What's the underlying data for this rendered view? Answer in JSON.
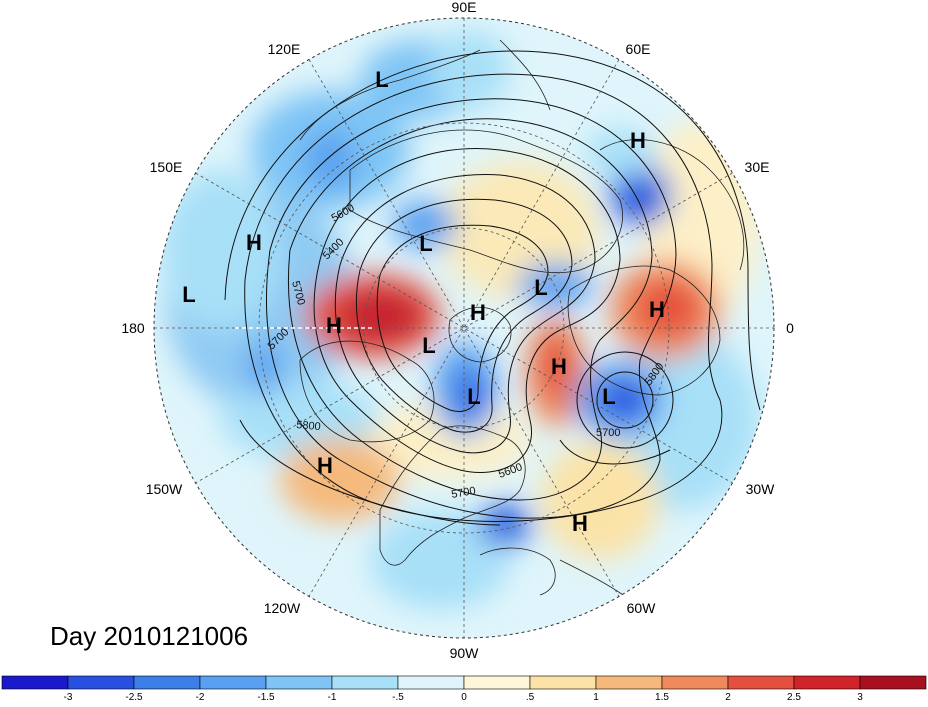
{
  "title": "Day 2010121006",
  "projection": "north-polar-stereographic",
  "longitude_labels": [
    {
      "text": "90E",
      "lon": 90
    },
    {
      "text": "60E",
      "lon": 60
    },
    {
      "text": "30E",
      "lon": 30
    },
    {
      "text": "0",
      "lon": 0
    },
    {
      "text": "30W",
      "lon": -30
    },
    {
      "text": "60W",
      "lon": -60
    },
    {
      "text": "90W",
      "lon": -90
    },
    {
      "text": "120W",
      "lon": -120
    },
    {
      "text": "150W",
      "lon": -150
    },
    {
      "text": "180",
      "lon": 180
    },
    {
      "text": "150E",
      "lon": 150
    },
    {
      "text": "120E",
      "lon": 120
    }
  ],
  "contour_labels": [
    "5600",
    "5400",
    "5700",
    "5800",
    "5700",
    "5800",
    "5700",
    "5600",
    "5700",
    "5800",
    "5700"
  ],
  "pressure_centers": [
    {
      "label": "L",
      "name": "low-siberia-north"
    },
    {
      "label": "H",
      "name": "high-scandinavia"
    },
    {
      "label": "H",
      "name": "high-east-asia"
    },
    {
      "label": "L",
      "name": "low-central-siberia"
    },
    {
      "label": "L",
      "name": "low-pacific-west"
    },
    {
      "label": "H",
      "name": "high-bering"
    },
    {
      "label": "H",
      "name": "high-arctic"
    },
    {
      "label": "L",
      "name": "low-barents"
    },
    {
      "label": "H",
      "name": "high-europe"
    },
    {
      "label": "L",
      "name": "low-alaska"
    },
    {
      "label": "H",
      "name": "high-greenland"
    },
    {
      "label": "L",
      "name": "low-hudson"
    },
    {
      "label": "L",
      "name": "low-north-atlantic"
    },
    {
      "label": "H",
      "name": "high-north-pacific"
    },
    {
      "label": "H",
      "name": "high-subtropical-atlantic"
    }
  ],
  "colorbar": {
    "labels": [
      "-3",
      "-2.5",
      "-2",
      "-1.5",
      "-1",
      "-.5",
      "0",
      ".5",
      "1",
      "1.5",
      "2",
      "2.5",
      "3"
    ],
    "colors": [
      "#1a1acc",
      "#2850e0",
      "#3d7fe8",
      "#5aa0f0",
      "#7ec4f5",
      "#a8e0f8",
      "#dff5fb",
      "#fdf6d8",
      "#fbe3a8",
      "#f5b97c",
      "#ef8a5c",
      "#e5503e",
      "#d0242b",
      "#a81020"
    ]
  },
  "colors": {
    "frame_line": "#333333",
    "contour_line": "#111111",
    "grid_line": "#555555",
    "land_outline": "#222222"
  }
}
